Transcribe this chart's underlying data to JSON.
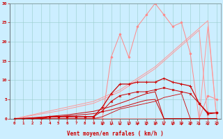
{
  "x": [
    0,
    1,
    2,
    3,
    4,
    5,
    6,
    7,
    8,
    9,
    10,
    11,
    12,
    13,
    14,
    15,
    16,
    17,
    18,
    19,
    20,
    21,
    22,
    23
  ],
  "background_color": "#cceeff",
  "grid_color": "#99cccc",
  "xlabel": "Vent moyen/en rafales ( km/h )",
  "xlabel_color": "#cc0000",
  "tick_color": "#cc0000",
  "ylim": [
    0,
    30
  ],
  "xlim": [
    -0.5,
    23.5
  ],
  "yticks": [
    0,
    5,
    10,
    15,
    20,
    25,
    30
  ],
  "series": [
    {
      "label": "pink_squiggle",
      "color": "#ff8888",
      "linewidth": 0.7,
      "marker": "D",
      "markersize": 1.5,
      "y": [
        0,
        0,
        0,
        0,
        0,
        0,
        0,
        0,
        0,
        0,
        0,
        16,
        22,
        16,
        24,
        27,
        30,
        27,
        24,
        25,
        17,
        0,
        6,
        5
      ]
    },
    {
      "label": "pink_linear1",
      "color": "#ff9999",
      "linewidth": 0.7,
      "marker": null,
      "y": [
        0,
        0,
        0,
        0,
        0,
        0,
        0,
        0,
        0,
        0,
        0,
        0,
        0,
        0,
        0,
        0,
        0,
        0,
        0,
        0,
        0,
        0,
        24,
        0
      ]
    },
    {
      "label": "pink_diagonal1",
      "color": "#ff9999",
      "linewidth": 0.7,
      "marker": null,
      "y": [
        0,
        0.5,
        1.0,
        1.5,
        2.0,
        2.5,
        3.0,
        3.5,
        4.0,
        4.5,
        5.5,
        6.5,
        7.5,
        9.0,
        10.5,
        12.0,
        13.5,
        15.5,
        17.5,
        19.5,
        21.5,
        23.5,
        25.5,
        0
      ]
    },
    {
      "label": "pink_diagonal2",
      "color": "#ff9999",
      "linewidth": 0.7,
      "marker": null,
      "y": [
        0,
        0.4,
        0.8,
        1.2,
        1.6,
        2.0,
        2.5,
        3.0,
        3.5,
        4.0,
        5.0,
        6.0,
        7.0,
        8.5,
        10.0,
        11.5,
        13.0,
        15.0,
        17.0,
        19.0,
        21.0,
        23.0,
        0,
        0
      ]
    },
    {
      "label": "red_squiggle",
      "color": "#cc0000",
      "linewidth": 0.9,
      "marker": "+",
      "markersize": 2.5,
      "y": [
        0,
        0,
        0,
        0,
        0.5,
        0.5,
        0.5,
        0.5,
        0.5,
        0.5,
        3.0,
        6.5,
        9.0,
        9.0,
        9.5,
        9.5,
        9.5,
        10.5,
        9.5,
        9.0,
        8.5,
        4.0,
        1.5,
        1.5
      ]
    },
    {
      "label": "red_mid_squiggle",
      "color": "#cc0000",
      "linewidth": 0.7,
      "marker": "x",
      "markersize": 2,
      "y": [
        0,
        0,
        0,
        0,
        0.5,
        0.5,
        0.5,
        0.5,
        0.5,
        0.5,
        2.0,
        4.5,
        6.0,
        6.5,
        7.0,
        7.0,
        7.5,
        8.0,
        7.5,
        7.0,
        6.5,
        4.0,
        1.2,
        1.5
      ]
    },
    {
      "label": "red_diagonal1",
      "color": "#cc0000",
      "linewidth": 0.7,
      "marker": null,
      "y": [
        0,
        0.1,
        0.25,
        0.4,
        0.6,
        0.8,
        1.0,
        1.3,
        1.6,
        1.9,
        2.5,
        3.2,
        4.0,
        4.8,
        5.7,
        6.5,
        7.0,
        0,
        0,
        0,
        0,
        0,
        0,
        0
      ]
    },
    {
      "label": "red_diagonal2",
      "color": "#cc0000",
      "linewidth": 0.7,
      "marker": null,
      "y": [
        0,
        0.05,
        0.15,
        0.25,
        0.4,
        0.55,
        0.7,
        0.9,
        1.1,
        1.3,
        1.8,
        2.3,
        2.9,
        3.5,
        4.2,
        4.8,
        5.0,
        0,
        0,
        0,
        0,
        0,
        0,
        0
      ]
    },
    {
      "label": "red_flat_low",
      "color": "#cc0000",
      "linewidth": 0.6,
      "marker": null,
      "y": [
        0,
        0,
        0,
        0,
        0,
        0,
        0,
        0,
        0,
        0,
        0.5,
        1.5,
        2.5,
        3.0,
        3.5,
        4.0,
        4.5,
        5.5,
        6.0,
        6.5,
        0,
        0,
        0,
        0
      ]
    }
  ],
  "arrows_x": [
    10,
    11,
    12,
    13,
    14,
    15,
    16,
    17,
    18,
    19,
    20,
    21,
    22,
    23
  ],
  "arrow_color": "#cc0000",
  "arrow_size": 3
}
